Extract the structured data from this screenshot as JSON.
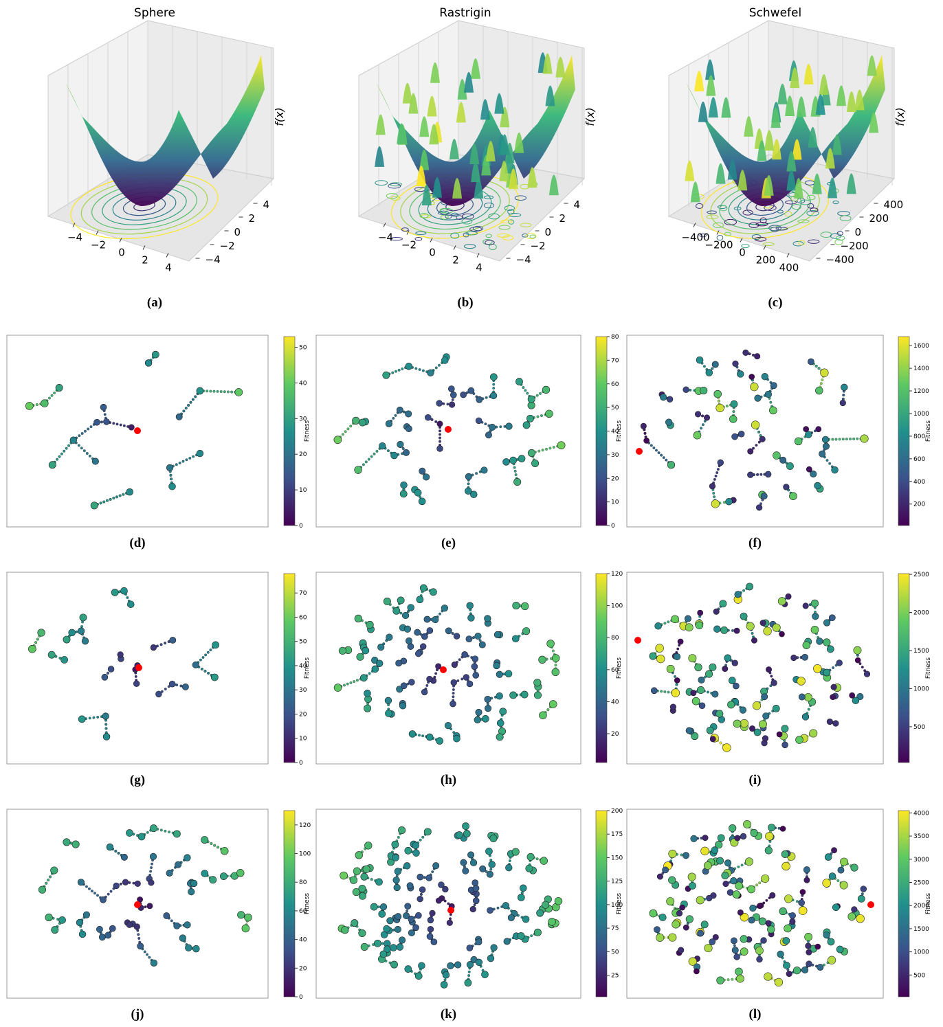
{
  "panels": [
    {
      "label": "(a)",
      "title": "Sphere",
      "zlabel": "f(x)",
      "xlim": [
        -5,
        5
      ],
      "xticks": [
        {
          "value": -4,
          "label": "−4"
        },
        {
          "value": -2,
          "label": "−2"
        },
        0,
        2,
        4
      ],
      "ylim": [
        -5,
        5
      ],
      "yticks": [
        4,
        2,
        0,
        {
          "value": -2,
          "label": "−2"
        },
        {
          "value": -4,
          "label": "−4"
        }
      ]
    },
    {
      "label": "(b)",
      "title": "Rastrigin",
      "zlabel": "f(x)",
      "xlim": [
        -5,
        5
      ],
      "xticks": [
        {
          "value": -4,
          "label": "−4"
        },
        {
          "value": -2,
          "label": "−2"
        },
        0,
        2,
        4
      ],
      "ylim": [
        -5,
        5
      ],
      "yticks": [
        4,
        2,
        0,
        {
          "value": -2,
          "label": "−2"
        },
        {
          "value": -4,
          "label": "−4"
        }
      ]
    },
    {
      "label": "(c)",
      "title": "Schwefel",
      "zlabel": "f(x)",
      "xlim": [
        -500,
        500
      ],
      "xticks": [
        {
          "value": -400,
          "label": "−400"
        },
        {
          "value": -200,
          "label": "−200"
        },
        0,
        200,
        400
      ],
      "ylim": [
        -500,
        500
      ],
      "yticks": [
        400,
        200,
        0,
        {
          "value": -200,
          "label": "−200"
        },
        {
          "value": -400,
          "label": "−400"
        }
      ]
    },
    {
      "label": "(d)",
      "clabel": "Fitness",
      "clim": [
        0,
        53
      ],
      "cticks": [
        0,
        10,
        20,
        30,
        40,
        50
      ]
    },
    {
      "label": "(e)",
      "clabel": "Fitness",
      "clim": [
        0,
        80
      ],
      "cticks": [
        0,
        10,
        20,
        30,
        40,
        50,
        60,
        70,
        80
      ]
    },
    {
      "label": "(f)",
      "clabel": "Fitness",
      "clim": [
        10,
        1680
      ],
      "cticks": [
        200,
        400,
        600,
        800,
        1000,
        1200,
        1400,
        1600
      ]
    },
    {
      "label": "(g)",
      "clabel": "Fitness",
      "clim": [
        0,
        78
      ],
      "cticks": [
        0,
        10,
        20,
        30,
        40,
        50,
        60,
        70
      ]
    },
    {
      "label": "(h)",
      "clabel": "Fitness",
      "clim": [
        2,
        120
      ],
      "cticks": [
        20,
        40,
        60,
        80,
        100,
        120
      ]
    },
    {
      "label": "(i)",
      "clabel": "Fitness",
      "clim": [
        30,
        2510
      ],
      "cticks": [
        500,
        1000,
        1500,
        2000,
        2500
      ]
    },
    {
      "label": "(j)",
      "clabel": "Fitness",
      "clim": [
        0,
        130
      ],
      "cticks": [
        0,
        20,
        40,
        60,
        80,
        100,
        120
      ]
    },
    {
      "label": "(k)",
      "clabel": "Fitness",
      "clim": [
        2,
        200
      ],
      "cticks": [
        25,
        50,
        75,
        100,
        125,
        150,
        175,
        200
      ]
    },
    {
      "label": "(l)",
      "clabel": "Fitness",
      "clim": [
        30,
        4050
      ],
      "cticks": [
        500,
        1000,
        1500,
        2000,
        2500,
        3000,
        3500,
        4000
      ]
    }
  ]
}
